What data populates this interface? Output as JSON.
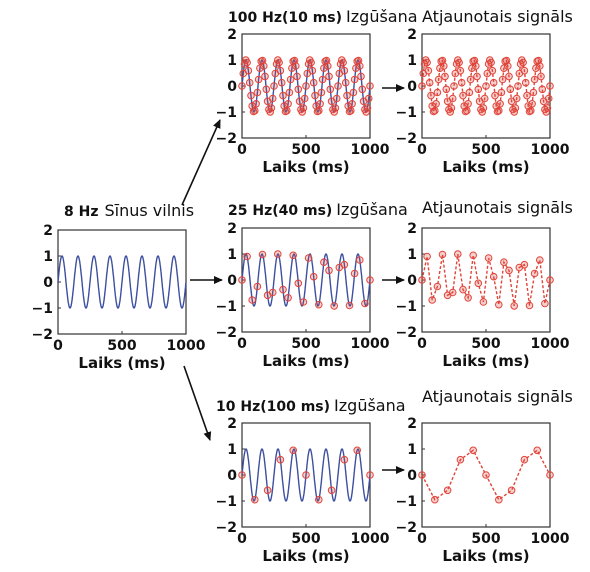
{
  "colors": {
    "wave": "#3d4f9f",
    "samples": "#e0453a",
    "axis": "#333333"
  },
  "panels": {
    "original": {
      "title_part1": "8 Hz",
      "title_part2": "Sīnus vilnis",
      "xlabel": "Laiks (ms)",
      "yticks": [
        "2",
        "1",
        "0",
        "−1",
        "−2"
      ],
      "xticks": [
        "0",
        "500",
        "1000"
      ]
    },
    "sample_100": {
      "title_part1": "100 Hz(10 ms)",
      "title_part2": "Izgūšana",
      "xlabel": "Laiks (ms)",
      "yticks": [
        "2",
        "1",
        "0",
        "−1",
        "−2"
      ],
      "xticks": [
        "0",
        "500",
        "1000"
      ]
    },
    "sample_25": {
      "title_part1": "25 Hz(40 ms)",
      "title_part2": "Izgūšana",
      "xlabel": "Laiks (ms)",
      "yticks": [
        "2",
        "1",
        "0",
        "−1",
        "−2"
      ],
      "xticks": [
        "0",
        "500",
        "1000"
      ]
    },
    "sample_10": {
      "title_part1": "10 Hz(100 ms)",
      "title_part2": "Izgūšana",
      "xlabel": "Laiks (ms)",
      "yticks": [
        "2",
        "1",
        "0",
        "−1",
        "−2"
      ],
      "xticks": [
        "0",
        "500",
        "1000"
      ]
    },
    "recon_100": {
      "title": "Atjaunotais signāls",
      "xlabel": "Laiks (ms)",
      "yticks": [
        "2",
        "1",
        "0",
        "−1",
        "−2"
      ],
      "xticks": [
        "0",
        "500",
        "1000"
      ]
    },
    "recon_25": {
      "title": "Atjaunotais signāls",
      "xlabel": "Laiks (ms)",
      "yticks": [
        "2",
        "1",
        "0",
        "−1",
        "−2"
      ],
      "xticks": [
        "0",
        "500",
        "1000"
      ]
    },
    "recon_10": {
      "title": "Atjaunotais signāls",
      "xlabel": "Laiks (ms)",
      "yticks": [
        "2",
        "1",
        "0",
        "−1",
        "−2"
      ],
      "xticks": [
        "0",
        "500",
        "1000"
      ]
    }
  },
  "chart_data": [
    {
      "panel": "original",
      "type": "line",
      "signal_frequency_hz": 8,
      "xlim": [
        0,
        1000
      ],
      "ylim": [
        -2,
        2
      ],
      "amplitude": 1
    },
    {
      "panel": "sample_100",
      "type": "line",
      "signal_frequency_hz": 8,
      "sampling_interval_ms": 10,
      "xlim": [
        0,
        1000
      ],
      "ylim": [
        -2,
        2
      ]
    },
    {
      "panel": "sample_25",
      "type": "line",
      "signal_frequency_hz": 8,
      "sampling_interval_ms": 40,
      "xlim": [
        0,
        1000
      ],
      "ylim": [
        -2,
        2
      ]
    },
    {
      "panel": "sample_10",
      "type": "line",
      "signal_frequency_hz": 8,
      "sampling_interval_ms": 100,
      "xlim": [
        0,
        1000
      ],
      "ylim": [
        -2,
        2
      ]
    },
    {
      "panel": "recon_100",
      "type": "line",
      "sampling_interval_ms": 10,
      "xlim": [
        0,
        1000
      ],
      "ylim": [
        -2,
        2
      ]
    },
    {
      "panel": "recon_25",
      "type": "line",
      "sampling_interval_ms": 40,
      "xlim": [
        0,
        1000
      ],
      "ylim": [
        -2,
        2
      ]
    },
    {
      "panel": "recon_10",
      "type": "line",
      "sampling_interval_ms": 100,
      "xlim": [
        0,
        1000
      ],
      "ylim": [
        -2,
        2
      ]
    }
  ]
}
